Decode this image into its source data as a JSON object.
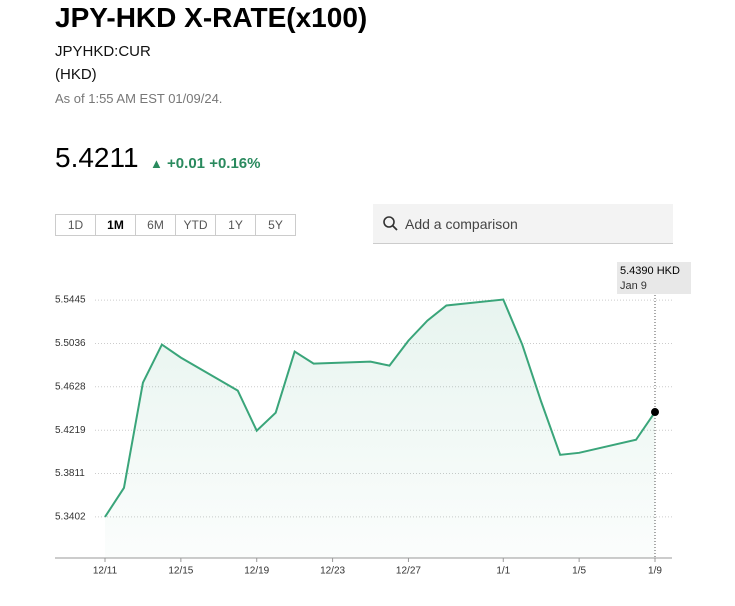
{
  "header": {
    "title": "JPY-HKD X-RATE(x100)",
    "ticker": "JPYHKD:CUR",
    "currency": "(HKD)",
    "as_of": "As of 1:55 AM EST 01/09/24."
  },
  "quote": {
    "price": "5.4211",
    "change": "+0.01",
    "change_pct": "+0.16%"
  },
  "ranges": [
    "1D",
    "1M",
    "6M",
    "YTD",
    "1Y",
    "5Y"
  ],
  "search": {
    "placeholder": "Add a comparison"
  },
  "tooltip": {
    "value": "5.4390 HKD",
    "date": "Jan 9"
  },
  "chart_data": {
    "type": "line",
    "color": "#3aa57a",
    "x": [
      "12/11",
      "12/12",
      "12/13",
      "12/14",
      "12/15",
      "12/18",
      "12/19",
      "12/20",
      "12/21",
      "12/22",
      "12/25",
      "12/26",
      "12/27",
      "12/28",
      "12/29",
      "1/1",
      "1/2",
      "1/3",
      "1/4",
      "1/5",
      "1/8",
      "1/9"
    ],
    "values": [
      5.3402,
      5.3676,
      5.4667,
      5.5026,
      5.4903,
      5.4592,
      5.4214,
      5.4384,
      5.496,
      5.4846,
      5.4865,
      5.4827,
      5.5063,
      5.5252,
      5.5394,
      5.545,
      5.5026,
      5.4487,
      5.3987,
      5.4006,
      5.4129,
      5.439
    ],
    "xticks": [
      "12/11",
      "12/15",
      "12/19",
      "12/23",
      "12/27",
      "1/1",
      "1/5",
      "1/9"
    ],
    "ylim": [
      5.3015,
      5.57
    ],
    "yticks": [
      5.3402,
      5.3811,
      5.4219,
      5.4628,
      5.5036,
      5.5445
    ],
    "grid": true
  }
}
